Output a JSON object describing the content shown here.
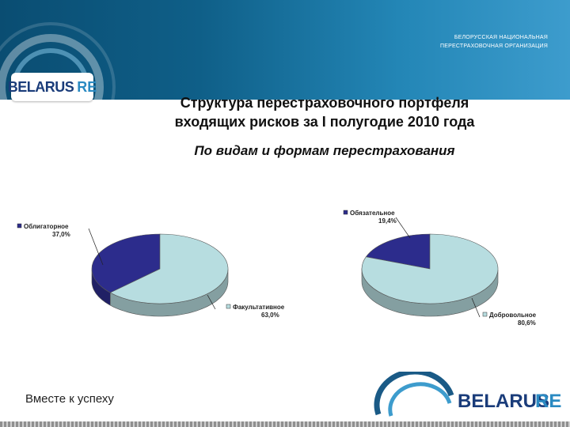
{
  "header": {
    "org_line1": "БЕЛОРУССКАЯ НАЦИОНАЛЬНАЯ",
    "org_line2": "ПЕРЕСТРАХОВОЧНАЯ ОРГАНИЗАЦИЯ",
    "logo_part1": "BELARUS",
    "logo_part2": "RE"
  },
  "title_line1": "Структура перестраховочного портфеля",
  "title_line2": "входящих рисков за I полугодие 2010 года",
  "subtitle": "По видам и формам перестрахования",
  "chart_data": [
    {
      "type": "pie",
      "slices": [
        {
          "label": "Облигаторное",
          "value": 37.0,
          "value_label": "37,0%",
          "color": "#2c2c8c"
        },
        {
          "label": "Факультативное",
          "value": 63.0,
          "value_label": "63,0%",
          "color": "#b7dde0"
        }
      ]
    },
    {
      "type": "pie",
      "slices": [
        {
          "label": "Обязательное",
          "value": 19.4,
          "value_label": "19,4%",
          "color": "#2c2c8c"
        },
        {
          "label": "Добровольное",
          "value": 80.6,
          "value_label": "80,6%",
          "color": "#b7dde0"
        }
      ]
    }
  ],
  "footer": {
    "slogan": "Вместе к успеху",
    "logo_part1": "BELARUS",
    "logo_part2": "RE"
  }
}
